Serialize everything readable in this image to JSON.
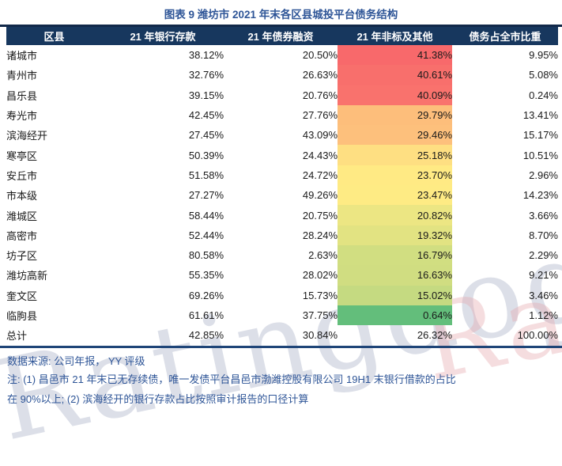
{
  "title": "图表 9 潍坊市 2021 年末各区县城投平台债务结构",
  "header": {
    "columns": [
      "区县",
      "21 年银行存款",
      "21 年债券融资",
      "21 年非标及其他",
      "债务占全市比重"
    ]
  },
  "rows": [
    {
      "district": "诸城市",
      "bank": "38.12%",
      "bond": "20.50%",
      "nonstandard": "41.38%",
      "city_share": "9.95%",
      "heat_color": "#F8696B"
    },
    {
      "district": "青州市",
      "bank": "32.76%",
      "bond": "26.63%",
      "nonstandard": "40.61%",
      "city_share": "5.08%",
      "heat_color": "#F86F6C"
    },
    {
      "district": "昌乐县",
      "bank": "39.15%",
      "bond": "20.76%",
      "nonstandard": "40.09%",
      "city_share": "0.24%",
      "heat_color": "#F9726D"
    },
    {
      "district": "寿光市",
      "bank": "42.45%",
      "bond": "27.76%",
      "nonstandard": "29.79%",
      "city_share": "13.41%",
      "heat_color": "#FDBE7B"
    },
    {
      "district": "滨海经开",
      "bank": "27.45%",
      "bond": "43.09%",
      "nonstandard": "29.46%",
      "city_share": "15.17%",
      "heat_color": "#FDC07C"
    },
    {
      "district": "寒亭区",
      "bank": "50.39%",
      "bond": "24.43%",
      "nonstandard": "25.18%",
      "city_share": "10.51%",
      "heat_color": "#FEDF82"
    },
    {
      "district": "安丘市",
      "bank": "51.58%",
      "bond": "24.72%",
      "nonstandard": "23.70%",
      "city_share": "2.96%",
      "heat_color": "#FFEA84"
    },
    {
      "district": "市本级",
      "bank": "27.27%",
      "bond": "49.26%",
      "nonstandard": "23.47%",
      "city_share": "14.23%",
      "heat_color": "#FEEB84"
    },
    {
      "district": "潍城区",
      "bank": "58.44%",
      "bond": "20.75%",
      "nonstandard": "20.82%",
      "city_share": "3.66%",
      "heat_color": "#ECE683"
    },
    {
      "district": "高密市",
      "bank": "52.44%",
      "bond": "28.24%",
      "nonstandard": "19.32%",
      "city_share": "8.70%",
      "heat_color": "#E2E382"
    },
    {
      "district": "坊子区",
      "bank": "80.58%",
      "bond": "2.63%",
      "nonstandard": "16.79%",
      "city_share": "2.29%",
      "heat_color": "#D1DE81"
    },
    {
      "district": "潍坊高新",
      "bank": "55.35%",
      "bond": "28.02%",
      "nonstandard": "16.63%",
      "city_share": "9.21%",
      "heat_color": "#D0DD81"
    },
    {
      "district": "奎文区",
      "bank": "69.26%",
      "bond": "15.73%",
      "nonstandard": "15.02%",
      "city_share": "3.46%",
      "heat_color": "#C5DA81"
    },
    {
      "district": "临朐县",
      "bank": "61.61%",
      "bond": "37.75%",
      "nonstandard": "0.64%",
      "city_share": "1.12%",
      "heat_color": "#63BE7B"
    },
    {
      "district": "总计",
      "bank": "42.85%",
      "bond": "30.84%",
      "nonstandard": "26.32%",
      "city_share": "100.00%",
      "heat_color": null
    }
  ],
  "footer": {
    "source": "数据来源: 公司年报， YY 评级",
    "note_line1": "注: (1) 昌邑市 21 年末已无存续债，唯一发债平台昌邑市渤潍控股有限公司 19H1 末银行借款的占比",
    "note_line2": "在 90%以上; (2) 滨海经开的银行存款占比按照审计报告的口径计算"
  },
  "watermark": {
    "text": "Ratingdog"
  },
  "colors": {
    "title": "#2E5597",
    "header_bg": "#17375E",
    "header_text": "#FFFFFF",
    "footer_text": "#2E5597",
    "rule_top": "#12294A",
    "rule_bottom": "#1F4578",
    "heat_scale_max_red": "#F8696B",
    "heat_scale_mid_yellow": "#FFEB84",
    "heat_scale_min_green": "#63BE7B"
  },
  "chart_data": {
    "type": "table",
    "title": "图表 9 潍坊市 2021 年末各区县城投平台债务结构",
    "columns": [
      "区县",
      "21 年银行存款",
      "21 年债券融资",
      "21 年非标及其他",
      "债务占全市比重"
    ],
    "unit": "percent",
    "rows": [
      [
        "诸城市",
        38.12,
        20.5,
        41.38,
        9.95
      ],
      [
        "青州市",
        32.76,
        26.63,
        40.61,
        5.08
      ],
      [
        "昌乐县",
        39.15,
        20.76,
        40.09,
        0.24
      ],
      [
        "寿光市",
        42.45,
        27.76,
        29.79,
        13.41
      ],
      [
        "滨海经开",
        27.45,
        43.09,
        29.46,
        15.17
      ],
      [
        "寒亭区",
        50.39,
        24.43,
        25.18,
        10.51
      ],
      [
        "安丘市",
        51.58,
        24.72,
        23.7,
        2.96
      ],
      [
        "市本级",
        27.27,
        49.26,
        23.47,
        14.23
      ],
      [
        "潍城区",
        58.44,
        20.75,
        20.82,
        3.66
      ],
      [
        "高密市",
        52.44,
        28.24,
        19.32,
        8.7
      ],
      [
        "坊子区",
        80.58,
        2.63,
        16.79,
        2.29
      ],
      [
        "潍坊高新",
        55.35,
        28.02,
        16.63,
        9.21
      ],
      [
        "奎文区",
        69.26,
        15.73,
        15.02,
        3.46
      ],
      [
        "临朐县",
        61.61,
        37.75,
        0.64,
        1.12
      ],
      [
        "总计",
        42.85,
        30.84,
        26.32,
        100.0
      ]
    ],
    "heatmap": {
      "column": "21 年非标及其他",
      "scale": "3-color: high=#F8696B (red), mid=#FFEB84 (yellow), low=#63BE7B (green)",
      "excluded_rows": [
        "总计"
      ]
    },
    "legend_position": "none",
    "grid": false
  }
}
